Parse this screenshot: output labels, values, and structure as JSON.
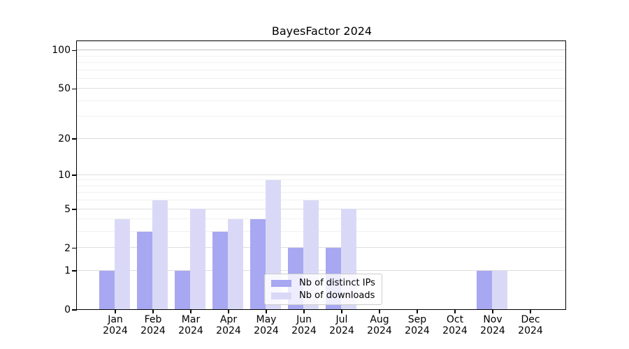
{
  "chart_data": {
    "type": "bar",
    "title": "BayesFactor 2024",
    "categories": [
      "Jan",
      "Feb",
      "Mar",
      "Apr",
      "May",
      "Jun",
      "Jul",
      "Aug",
      "Sep",
      "Oct",
      "Nov",
      "Dec"
    ],
    "category_year": "2024",
    "series": [
      {
        "name": "Nb of distinct IPs",
        "color": "#a7a7f2",
        "values": [
          1,
          3,
          1,
          3,
          4,
          2,
          2,
          0,
          0,
          0,
          1,
          0
        ]
      },
      {
        "name": "Nb of downloads",
        "color": "#d9d9f7",
        "values": [
          4,
          6,
          5,
          4,
          9,
          6,
          5,
          0,
          0,
          0,
          1,
          0
        ]
      }
    ],
    "y_axis": {
      "scale": "log1p",
      "major_ticks": [
        0,
        1,
        2,
        5,
        10,
        20,
        50,
        100
      ],
      "minor_gridlines": [
        3,
        4,
        6,
        7,
        8,
        9,
        30,
        40,
        60,
        70,
        80,
        90
      ],
      "min": 0,
      "max": 100
    },
    "xlabel": "",
    "ylabel": "",
    "grid": true,
    "legend_position": "bottom-center"
  },
  "colors": {
    "background": "#ffffff",
    "axis": "#000000",
    "gridline_major": "#dedede",
    "gridline_minor": "#f0f0f0",
    "gridline_top": "#c2c2c2",
    "legend_border": "#cccccc",
    "text": "#000000"
  }
}
